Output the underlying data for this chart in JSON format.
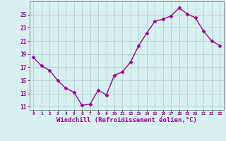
{
  "x": [
    0,
    1,
    2,
    3,
    4,
    5,
    6,
    7,
    8,
    9,
    10,
    11,
    12,
    13,
    14,
    15,
    16,
    17,
    18,
    19,
    20,
    21,
    22,
    23
  ],
  "y": [
    18.5,
    17.2,
    16.5,
    15.0,
    13.8,
    13.2,
    11.2,
    11.4,
    13.5,
    12.8,
    15.8,
    16.3,
    17.8,
    20.3,
    22.2,
    24.0,
    24.3,
    24.8,
    26.0,
    25.1,
    24.5,
    22.5,
    21.0,
    20.3
  ],
  "line_color": "#990099",
  "marker": "D",
  "markersize": 2.5,
  "linewidth": 1.0,
  "xlabel": "Windchill (Refroidissement éolien,°C)",
  "xlabel_fontsize": 6.5,
  "bg_color": "#d8f0f0",
  "grid_color": "#aed4d4",
  "tick_color": "#990099",
  "label_color": "#990099",
  "yticks": [
    11,
    13,
    15,
    17,
    19,
    21,
    23,
    25
  ],
  "xticks": [
    0,
    1,
    2,
    3,
    4,
    5,
    6,
    7,
    8,
    9,
    10,
    11,
    12,
    13,
    14,
    15,
    16,
    17,
    18,
    19,
    20,
    21,
    22,
    23
  ],
  "xlim": [
    -0.5,
    23.5
  ],
  "ylim": [
    10.5,
    27.0
  ]
}
